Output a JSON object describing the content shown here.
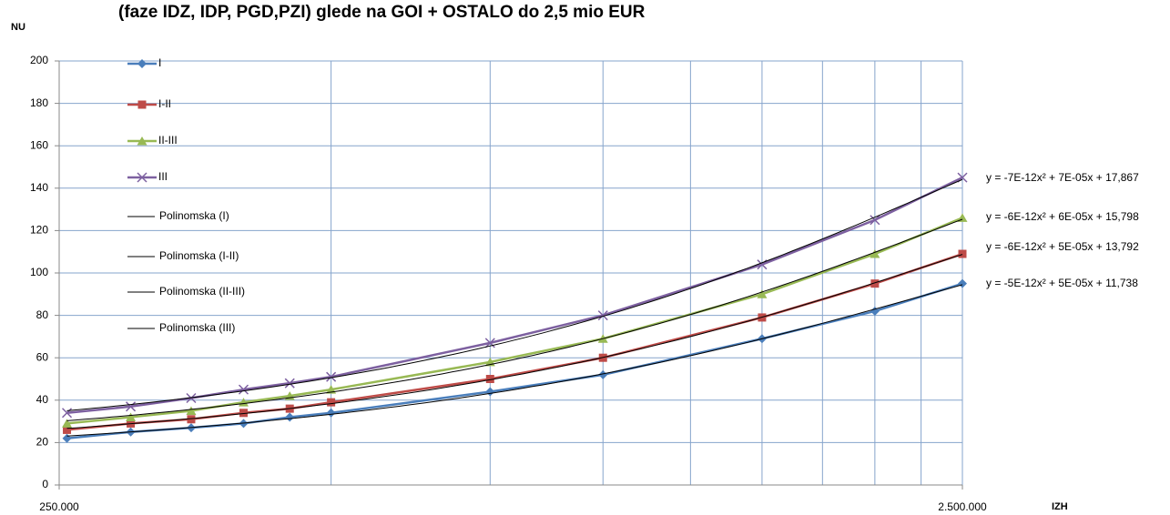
{
  "chart_data": {
    "type": "line",
    "title": "(faze IDZ, IDP, PGD,PZI) glede na GOI + OSTALO do 2,5 mio EUR",
    "y_label": "NU",
    "x_label": "IZH",
    "x": [
      255000,
      300000,
      350000,
      400000,
      450000,
      500000,
      750000,
      1000000,
      1500000,
      2000000,
      2500000
    ],
    "xscale": "log",
    "xlim": [
      250000,
      2500000
    ],
    "xticks": [
      {
        "value": 250000,
        "label": "250.000"
      },
      {
        "value": 2500000,
        "label": "2.500.000"
      }
    ],
    "ylim": [
      0,
      200
    ],
    "yticks": [
      0,
      20,
      40,
      60,
      80,
      100,
      120,
      140,
      160,
      180,
      200
    ],
    "grid": true,
    "legend": "top-left",
    "series": [
      {
        "name": "I",
        "color": "#4a7ebb",
        "marker": "diamond",
        "values": [
          22,
          25,
          27,
          29,
          32,
          34,
          44,
          52,
          69,
          82,
          95
        ],
        "trendline": {
          "name": "Polinomska (I)",
          "color": "#000000",
          "label": "y = -5E-12x² + 5E-05x + 11,738"
        }
      },
      {
        "name": "I-II",
        "color": "#be4b48",
        "marker": "square",
        "values": [
          26,
          29,
          31,
          34,
          36,
          39,
          50,
          60,
          79,
          95,
          109
        ],
        "trendline": {
          "name": "Polinomska (I-II)",
          "color": "#000000",
          "label": "y = -6E-12x² + 5E-05x + 13,792"
        }
      },
      {
        "name": "II-III",
        "color": "#98b954",
        "marker": "triangle",
        "values": [
          29,
          32,
          35,
          39,
          42,
          45,
          58,
          69,
          90,
          109,
          126
        ],
        "trendline": {
          "name": "Polinomska (II-III)",
          "color": "#000000",
          "label": "y = -6E-12x² + 6E-05x + 15,798"
        }
      },
      {
        "name": "III",
        "color": "#7d60a0",
        "marker": "x",
        "values": [
          34,
          37,
          41,
          45,
          48,
          51,
          67,
          80,
          104,
          125,
          145
        ],
        "trendline": {
          "name": "Polinomska (III)",
          "color": "#000000",
          "label": "y = -7E-12x² + 7E-05x + 17,867"
        }
      }
    ]
  }
}
